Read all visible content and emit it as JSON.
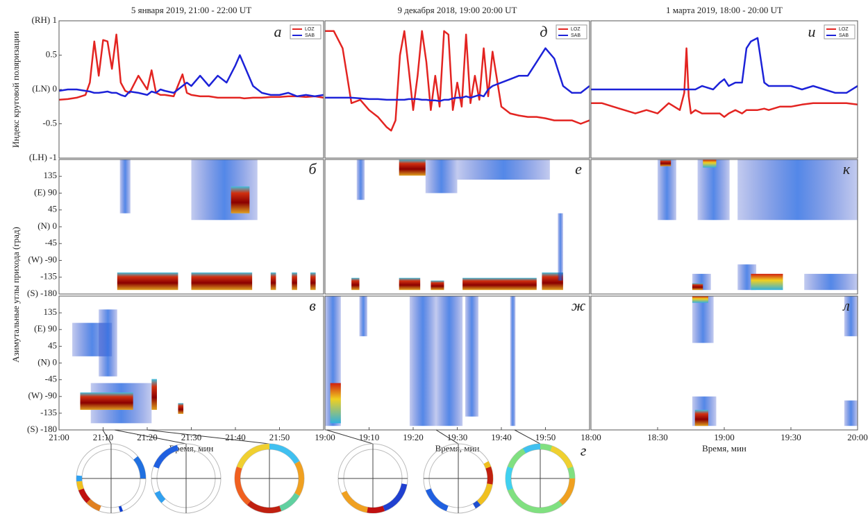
{
  "chart_data": [
    {
      "type": "line",
      "title": "5 января 2019, 21:00 - 22:00 UT",
      "ylabel": "Индекс круговой поляризации",
      "annotation": "а",
      "legend": "upper right",
      "xlim": [
        0,
        60
      ],
      "ylim": [
        -1,
        1
      ],
      "yticks": [
        {
          "value": 1,
          "label": "(RH) 1"
        },
        0.5,
        {
          "value": 0,
          "label": "(LN) 0"
        },
        -0.5,
        {
          "value": -1,
          "label": "(LH) -1"
        }
      ],
      "x": [
        0,
        2,
        4,
        6,
        7,
        8,
        9,
        10,
        11,
        12,
        13,
        14,
        15,
        16,
        18,
        20,
        21,
        22,
        23,
        24,
        26,
        28,
        29,
        30,
        32,
        34,
        36,
        38,
        40,
        41,
        42,
        44,
        46,
        48,
        50,
        52,
        54,
        56,
        58,
        60
      ],
      "series": [
        {
          "name": "LOZ",
          "color": "#e32421",
          "values": [
            -0.15,
            -0.14,
            -0.12,
            -0.08,
            0.1,
            0.7,
            0.2,
            0.72,
            0.7,
            0.3,
            0.8,
            0.1,
            -0.02,
            -0.05,
            0.2,
            0.0,
            0.28,
            -0.05,
            -0.08,
            -0.08,
            -0.1,
            0.22,
            -0.05,
            -0.08,
            -0.1,
            -0.1,
            -0.12,
            -0.12,
            -0.12,
            -0.12,
            -0.13,
            -0.12,
            -0.12,
            -0.11,
            -0.11,
            -0.1,
            -0.1,
            -0.11,
            -0.1,
            -0.12
          ]
        },
        {
          "name": "SAB",
          "color": "#1c22d8",
          "values": [
            -0.02,
            0.0,
            0.0,
            -0.02,
            -0.03,
            -0.05,
            -0.05,
            -0.04,
            -0.03,
            -0.05,
            -0.05,
            -0.08,
            -0.1,
            -0.03,
            -0.05,
            -0.08,
            -0.03,
            -0.05,
            0.0,
            -0.02,
            -0.05,
            0.05,
            0.1,
            0.05,
            0.2,
            0.05,
            0.2,
            0.1,
            0.35,
            0.5,
            0.35,
            0.05,
            -0.05,
            -0.08,
            -0.08,
            -0.05,
            -0.1,
            -0.08,
            -0.1,
            -0.08
          ]
        }
      ]
    },
    {
      "type": "line",
      "title": "9 декабря 2018, 19:00 20:00 UT",
      "annotation": "д",
      "legend": "upper right",
      "xlim": [
        0,
        60
      ],
      "ylim": [
        -1,
        1
      ],
      "x": [
        0,
        1,
        2,
        4,
        5,
        6,
        8,
        10,
        12,
        14,
        15,
        16,
        17,
        18,
        19,
        20,
        21,
        22,
        23,
        24,
        25,
        26,
        27,
        28,
        29,
        30,
        31,
        32,
        33,
        34,
        35,
        36,
        37,
        38,
        40,
        42,
        44,
        46,
        48,
        50,
        52,
        54,
        56,
        58,
        60
      ],
      "series": [
        {
          "name": "LOZ",
          "color": "#e32421",
          "values": [
            0.85,
            0.85,
            0.85,
            0.6,
            0.2,
            -0.2,
            -0.15,
            -0.3,
            -0.4,
            -0.55,
            -0.6,
            -0.45,
            0.5,
            0.85,
            0.3,
            -0.3,
            0.2,
            0.85,
            0.4,
            -0.3,
            0.2,
            -0.25,
            0.85,
            0.8,
            -0.3,
            0.1,
            -0.25,
            0.8,
            -0.2,
            0.2,
            -0.15,
            0.6,
            -0.1,
            0.55,
            -0.25,
            -0.35,
            -0.38,
            -0.4,
            -0.4,
            -0.42,
            -0.45,
            -0.45,
            -0.45,
            -0.5,
            -0.45
          ]
        },
        {
          "name": "SAB",
          "color": "#1c22d8",
          "values": [
            -0.12,
            -0.12,
            -0.12,
            -0.12,
            -0.12,
            -0.12,
            -0.13,
            -0.14,
            -0.14,
            -0.15,
            -0.15,
            -0.15,
            -0.15,
            -0.15,
            -0.14,
            -0.14,
            -0.14,
            -0.15,
            -0.15,
            -0.16,
            -0.16,
            -0.17,
            -0.15,
            -0.15,
            -0.13,
            -0.12,
            -0.12,
            -0.1,
            -0.12,
            -0.1,
            -0.08,
            -0.1,
            0.0,
            0.05,
            0.1,
            0.15,
            0.2,
            0.2,
            0.4,
            0.6,
            0.45,
            0.05,
            -0.05,
            -0.05,
            0.05
          ]
        }
      ]
    },
    {
      "type": "line",
      "title": "1 марта 2019, 18:00 - 20:00 UT",
      "annotation": "и",
      "legend": "upper right",
      "xlim": [
        0,
        120
      ],
      "ylim": [
        -1,
        1
      ],
      "x": [
        0,
        5,
        10,
        15,
        20,
        25,
        30,
        35,
        40,
        42,
        43,
        44,
        45,
        47,
        50,
        55,
        58,
        60,
        62,
        65,
        68,
        70,
        72,
        75,
        78,
        80,
        85,
        90,
        95,
        100,
        105,
        110,
        115,
        120
      ],
      "series": [
        {
          "name": "LOZ",
          "color": "#e32421",
          "values": [
            -0.2,
            -0.2,
            -0.25,
            -0.3,
            -0.35,
            -0.3,
            -0.35,
            -0.2,
            -0.3,
            -0.05,
            0.6,
            -0.1,
            -0.35,
            -0.3,
            -0.35,
            -0.35,
            -0.35,
            -0.4,
            -0.35,
            -0.3,
            -0.35,
            -0.3,
            -0.3,
            -0.3,
            -0.28,
            -0.3,
            -0.25,
            -0.25,
            -0.22,
            -0.2,
            -0.2,
            -0.2,
            -0.2,
            -0.22
          ]
        },
        {
          "name": "SAB",
          "color": "#1c22d8",
          "values": [
            0.0,
            0.0,
            0.0,
            0.0,
            0.0,
            0.0,
            0.0,
            0.0,
            0.0,
            0.0,
            0.0,
            0.0,
            0.0,
            0.0,
            0.05,
            0.0,
            0.1,
            0.15,
            0.05,
            0.1,
            0.1,
            0.6,
            0.7,
            0.75,
            0.1,
            0.05,
            0.05,
            0.05,
            0.0,
            0.05,
            0.0,
            -0.05,
            -0.05,
            0.05
          ]
        }
      ]
    },
    {
      "type": "heatmap",
      "annotation": "б",
      "ylabel": "Азимутальные углы прихода (град)",
      "ylim": [
        -180,
        180
      ],
      "yticks": [
        135,
        {
          "value": 90,
          "label": "(E) 90"
        },
        45,
        {
          "value": 0,
          "label": "(N) 0"
        },
        -45,
        {
          "value": -90,
          "label": "(W) -90"
        },
        -135,
        {
          "value": -180,
          "label": "(S) -180"
        }
      ]
    },
    {
      "type": "heatmap",
      "annotation": "е"
    },
    {
      "type": "heatmap",
      "annotation": "к"
    },
    {
      "type": "heatmap",
      "annotation": "в",
      "xlabel": "Время, мин",
      "ylim": [
        -180,
        180
      ],
      "yticks": [
        135,
        {
          "value": 90,
          "label": "(E) 90"
        },
        45,
        {
          "value": 0,
          "label": "(N) 0"
        },
        -45,
        {
          "value": -90,
          "label": "(W) -90"
        },
        -135,
        {
          "value": -180,
          "label": "(S) -180"
        }
      ],
      "xlim": [
        0,
        60
      ],
      "xticks": [
        {
          "value": 0,
          "label": "21:00"
        },
        {
          "value": 10,
          "label": "21:10"
        },
        {
          "value": 20,
          "label": "21:20"
        },
        {
          "value": 30,
          "label": "21:30"
        },
        {
          "value": 40,
          "label": "21:40"
        },
        {
          "value": 50,
          "label": "21:50"
        }
      ]
    },
    {
      "type": "heatmap",
      "annotation": "ж",
      "xlabel": "Время, мин",
      "xlim": [
        0,
        60
      ],
      "xticks": [
        {
          "value": 0,
          "label": "19:00"
        },
        {
          "value": 10,
          "label": "19:10"
        },
        {
          "value": 20,
          "label": "19:20"
        },
        {
          "value": 30,
          "label": "19:30"
        },
        {
          "value": 40,
          "label": "19:40"
        },
        {
          "value": 50,
          "label": "19:50"
        }
      ]
    },
    {
      "type": "heatmap",
      "annotation": "л",
      "xlabel": "Время, мин",
      "xlim": [
        0,
        120
      ],
      "xticks": [
        {
          "value": 0,
          "label": "18:00"
        },
        {
          "value": 30,
          "label": "18:30"
        },
        {
          "value": 60,
          "label": "19:00"
        },
        {
          "value": 90,
          "label": "19:30"
        },
        {
          "value": 120,
          "label": "20:00"
        }
      ]
    }
  ],
  "polar_label": "г"
}
